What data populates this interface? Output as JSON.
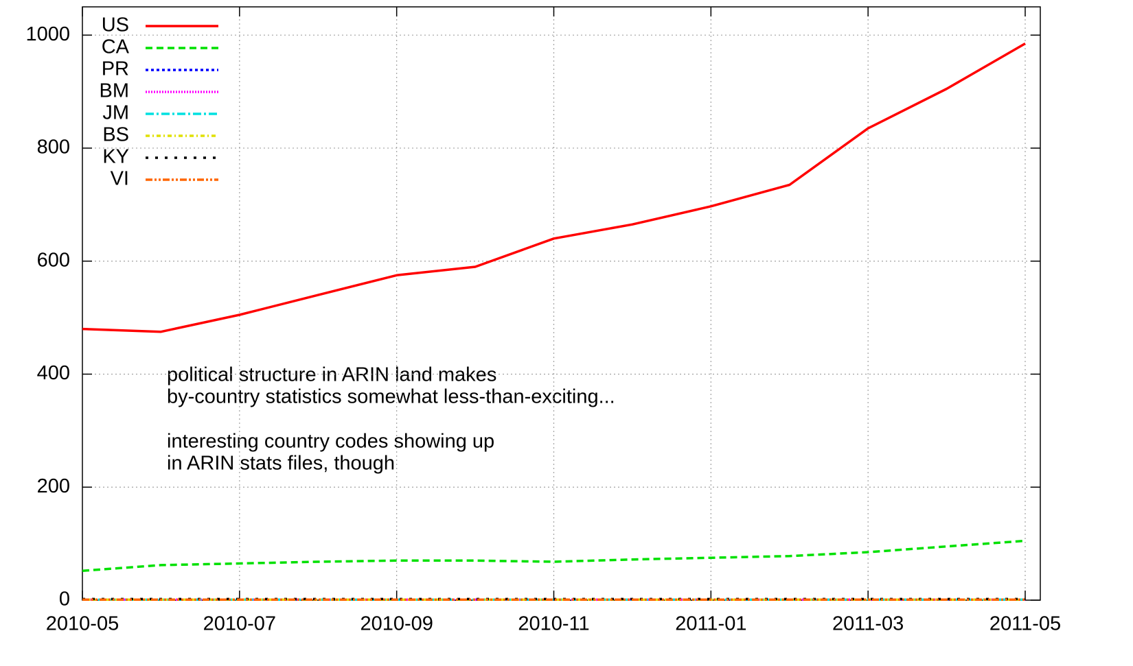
{
  "chart_data": {
    "type": "line",
    "x": [
      "2010-05",
      "2010-06",
      "2010-07",
      "2010-08",
      "2010-09",
      "2010-10",
      "2010-11",
      "2010-12",
      "2011-01",
      "2011-02",
      "2011-03",
      "2011-04",
      "2011-05"
    ],
    "series": [
      {
        "name": "US",
        "color": "#ff0000",
        "dash": "none",
        "values": [
          480,
          475,
          505,
          540,
          575,
          590,
          640,
          665,
          697,
          735,
          835,
          905,
          985
        ]
      },
      {
        "name": "CA",
        "color": "#00e000",
        "dash": "10,6",
        "values": [
          52,
          62,
          65,
          68,
          70,
          70,
          68,
          72,
          75,
          78,
          85,
          95,
          105
        ]
      },
      {
        "name": "PR",
        "color": "#0000ff",
        "dash": "4,4",
        "values": [
          1,
          1,
          1,
          1,
          1,
          1,
          1,
          1,
          1,
          1,
          1,
          1,
          1
        ]
      },
      {
        "name": "BM",
        "color": "#ff00ff",
        "dash": "2,2",
        "values": [
          1,
          1,
          1,
          1,
          1,
          1,
          1,
          1,
          1,
          1,
          1,
          1,
          1
        ]
      },
      {
        "name": "JM",
        "color": "#00e0e0",
        "dash": "12,4,3,4",
        "values": [
          1,
          1,
          1,
          1,
          1,
          1,
          1,
          1,
          1,
          1,
          1,
          1,
          1
        ]
      },
      {
        "name": "BS",
        "color": "#e0e000",
        "dash": "6,4,2,4",
        "values": [
          1,
          1,
          1,
          1,
          1,
          1,
          1,
          1,
          1,
          1,
          1,
          1,
          1
        ]
      },
      {
        "name": "KY",
        "color": "#000000",
        "dash": "4,10",
        "values": [
          2,
          2,
          2,
          2,
          2,
          2,
          2,
          2,
          2,
          2,
          2,
          2,
          2
        ]
      },
      {
        "name": "VI",
        "color": "#ff6600",
        "dash": "10,3,3,3,3,3",
        "values": [
          1,
          1,
          1,
          1,
          1,
          1,
          1,
          1,
          1,
          1,
          1,
          1,
          1
        ]
      }
    ],
    "annotations": [
      "political structure in ARIN land makes",
      "by-country statistics somewhat less-than-exciting...",
      "interesting country codes showing up",
      "in ARIN stats files, though"
    ],
    "xlim": [
      "2010-05",
      "2011-05"
    ],
    "xticks": [
      "2010-05",
      "2010-07",
      "2010-09",
      "2010-11",
      "2011-01",
      "2011-03",
      "2011-05"
    ],
    "ylim": [
      0,
      1050
    ],
    "yticks": [
      0,
      200,
      400,
      600,
      800,
      1000
    ],
    "grid": true,
    "legend": "top-left"
  }
}
